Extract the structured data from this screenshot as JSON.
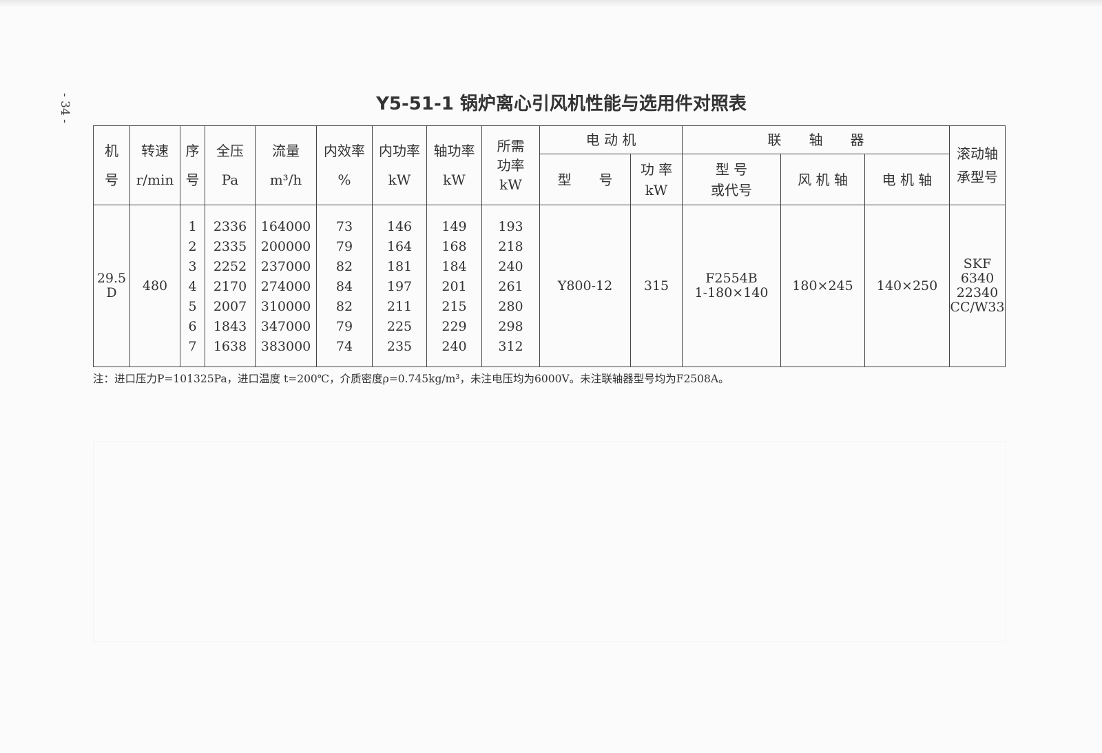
{
  "page_number": "- 34 -",
  "title": "Y5-51-1 锅炉离心引风机性能与选用件对照表",
  "headers": {
    "machine_no": [
      "机",
      "号"
    ],
    "speed": [
      "转速",
      "r/min"
    ],
    "seq": [
      "序",
      "号"
    ],
    "pressure": [
      "全压",
      "Pa"
    ],
    "flow": [
      "流量",
      "m³/h"
    ],
    "efficiency": [
      "内效率",
      "%"
    ],
    "internal_power": [
      "内功率",
      "kW"
    ],
    "shaft_power": [
      "轴功率",
      "kW"
    ],
    "required_power": [
      "所需",
      "功率",
      "kW"
    ],
    "motor": "电 动 机",
    "motor_model": "型　　号",
    "motor_power": [
      "功 率",
      "kW"
    ],
    "coupling": "联　　轴　　器",
    "coupling_model": [
      "型 号",
      "或代号"
    ],
    "fan_shaft": "风 机 轴",
    "motor_shaft": "电 机 轴",
    "bearing": [
      "滚动轴",
      "承型号"
    ]
  },
  "group": {
    "machine_no": [
      "29.5",
      "D"
    ],
    "speed": "480",
    "motor_model": "Y800-12",
    "motor_power": "315",
    "coupling_model": [
      "F2554B",
      "1-180×140"
    ],
    "fan_shaft": "180×245",
    "motor_shaft": "140×250",
    "bearing": [
      "SKF",
      "6340",
      "22340",
      "CC/W33"
    ]
  },
  "rows": [
    {
      "seq": "1",
      "pressure": "2336",
      "flow": "164000",
      "efficiency": "73",
      "internal_power": "146",
      "shaft_power": "149",
      "required_power": "193"
    },
    {
      "seq": "2",
      "pressure": "2335",
      "flow": "200000",
      "efficiency": "79",
      "internal_power": "164",
      "shaft_power": "168",
      "required_power": "218"
    },
    {
      "seq": "3",
      "pressure": "2252",
      "flow": "237000",
      "efficiency": "82",
      "internal_power": "181",
      "shaft_power": "184",
      "required_power": "240"
    },
    {
      "seq": "4",
      "pressure": "2170",
      "flow": "274000",
      "efficiency": "84",
      "internal_power": "197",
      "shaft_power": "201",
      "required_power": "261"
    },
    {
      "seq": "5",
      "pressure": "2007",
      "flow": "310000",
      "efficiency": "82",
      "internal_power": "211",
      "shaft_power": "215",
      "required_power": "280"
    },
    {
      "seq": "6",
      "pressure": "1843",
      "flow": "347000",
      "efficiency": "79",
      "internal_power": "225",
      "shaft_power": "229",
      "required_power": "298"
    },
    {
      "seq": "7",
      "pressure": "1638",
      "flow": "383000",
      "efficiency": "74",
      "internal_power": "235",
      "shaft_power": "240",
      "required_power": "312"
    }
  ],
  "note": "注：进口压力P=101325Pa，进口温度 t=200℃，介质密度ρ=0.745kg/m³，未注电压均为6000V。未注联轴器型号均为F2508A。"
}
